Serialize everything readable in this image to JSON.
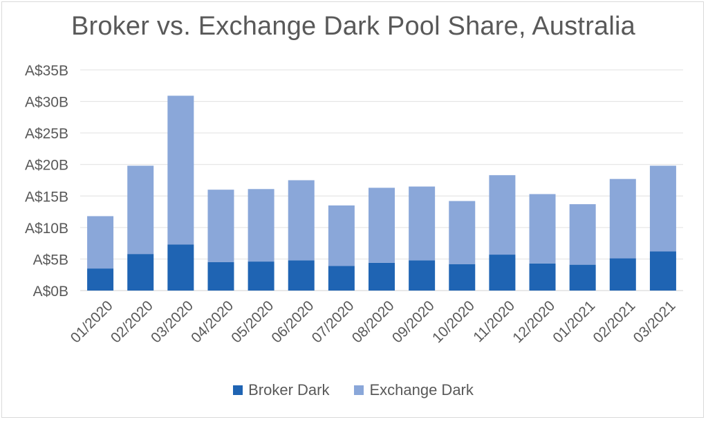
{
  "chart_data": {
    "type": "bar",
    "stacked": true,
    "title": "Broker vs. Exchange Dark Pool Share, Australia",
    "xlabel": "",
    "ylabel": "",
    "ylim": [
      0,
      35
    ],
    "y_ticks": [
      "A$0B",
      "A$5B",
      "A$10B",
      "A$15B",
      "A$20B",
      "A$25B",
      "A$30B",
      "A$35B"
    ],
    "grid": true,
    "legend_position": "bottom",
    "categories": [
      "01/2020",
      "02/2020",
      "03/2020",
      "04/2020",
      "05/2020",
      "06/2020",
      "07/2020",
      "08/2020",
      "09/2020",
      "10/2020",
      "11/2020",
      "12/2020",
      "01/2021",
      "02/2021",
      "03/2021"
    ],
    "series": [
      {
        "name": "Broker Dark",
        "color": "#1f64b3",
        "values": [
          3.5,
          5.8,
          7.3,
          4.5,
          4.6,
          4.8,
          3.9,
          4.4,
          4.8,
          4.2,
          5.7,
          4.3,
          4.1,
          5.1,
          6.2
        ]
      },
      {
        "name": "Exchange Dark",
        "color": "#8aa7d9",
        "values": [
          8.3,
          14.0,
          23.6,
          11.5,
          11.5,
          12.7,
          9.6,
          11.9,
          11.7,
          10.0,
          12.6,
          11.0,
          9.6,
          12.6,
          13.6
        ]
      }
    ]
  }
}
